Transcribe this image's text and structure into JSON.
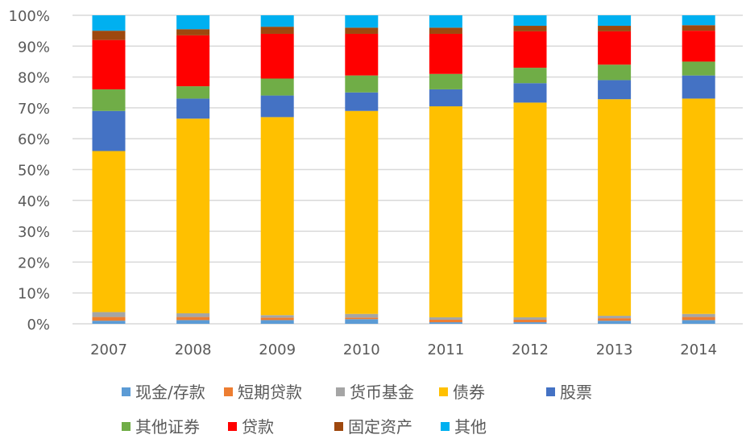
{
  "chart_data": {
    "type": "bar",
    "stacked": "percent",
    "categories": [
      "2007",
      "2008",
      "2009",
      "2010",
      "2011",
      "2012",
      "2013",
      "2014"
    ],
    "ylim": [
      0,
      100
    ],
    "yticks": [
      "0%",
      "10%",
      "20%",
      "30%",
      "40%",
      "50%",
      "60%",
      "70%",
      "80%",
      "90%",
      "100%"
    ],
    "grid": true,
    "legend_position": "bottom",
    "series": [
      {
        "name": "现金/存款",
        "color": "#5B9BD5",
        "values": [
          1.0,
          1.2,
          1.2,
          1.5,
          0.5,
          0.5,
          1.0,
          1.2
        ]
      },
      {
        "name": "短期贷款",
        "color": "#ED7D31",
        "values": [
          1.2,
          1.0,
          0.8,
          0.5,
          0.8,
          0.8,
          0.8,
          1.0
        ]
      },
      {
        "name": "货币基金",
        "color": "#A5A5A5",
        "values": [
          1.6,
          1.2,
          0.8,
          1.2,
          0.8,
          0.8,
          0.8,
          1.0
        ]
      },
      {
        "name": "债券",
        "color": "#FFC000",
        "values": [
          52.2,
          63.1,
          64.2,
          65.8,
          68.4,
          69.6,
          70.2,
          69.8
        ]
      },
      {
        "name": "股票",
        "color": "#4472C4",
        "values": [
          13.0,
          6.5,
          7.0,
          6.0,
          5.5,
          6.3,
          6.2,
          7.5
        ]
      },
      {
        "name": "其他证券",
        "color": "#70AD47",
        "values": [
          7.0,
          4.0,
          5.5,
          5.5,
          5.0,
          5.0,
          5.0,
          4.5
        ]
      },
      {
        "name": "贷款",
        "color": "#FF0000",
        "values": [
          16.0,
          16.5,
          14.5,
          13.5,
          13.0,
          11.8,
          10.8,
          10.0
        ]
      },
      {
        "name": "固定资产",
        "color": "#9E480E",
        "values": [
          3.0,
          2.0,
          2.3,
          2.0,
          2.0,
          1.8,
          1.8,
          1.8
        ]
      },
      {
        "name": "其他",
        "color": "#00B0F0",
        "values": [
          5.0,
          4.5,
          3.7,
          4.0,
          4.0,
          3.4,
          3.4,
          3.2
        ]
      }
    ]
  }
}
